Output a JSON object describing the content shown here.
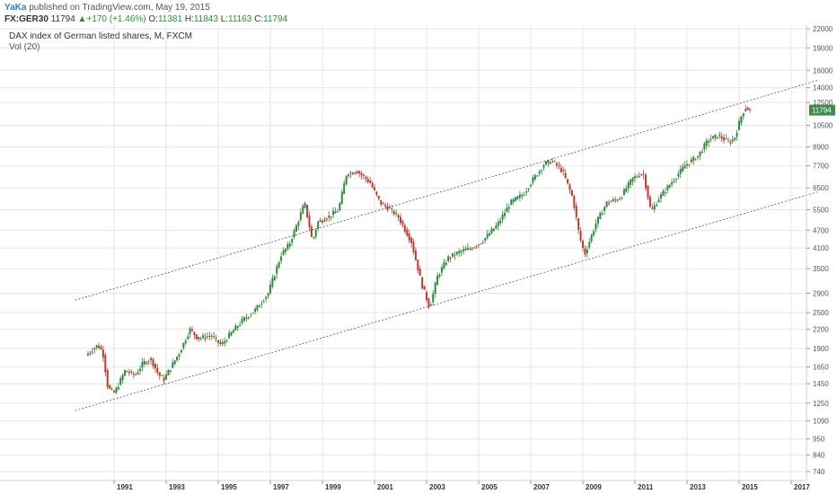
{
  "header": {
    "author": "YaKa",
    "published": "published on TradingView.com, May 19, 2015"
  },
  "quote": {
    "symbol": "FX:GER30",
    "last": "11794",
    "change": "+170 (+1.46%)",
    "open_label": "O:",
    "open": "11381",
    "high_label": "H:",
    "high": "11843",
    "low_label": "L:",
    "low": "11163",
    "close_label": "C:",
    "close": "11794"
  },
  "panel": {
    "title": "DAX index of German listed shares, M, FXCM",
    "vol": "Vol (20)"
  },
  "colors": {
    "up": "#2e8b3a",
    "down": "#c0392b",
    "last_price_bg": "#3d8c4c",
    "channel": "#555555",
    "grid": "#e6e6e6"
  },
  "chart_data": {
    "type": "candlestick",
    "title": "DAX index of German listed shares, M, FXCM",
    "y_scale": "log",
    "y_ticks": [
      740,
      840,
      950,
      1090,
      1250,
      1450,
      1650,
      1900,
      2200,
      2500,
      2900,
      3500,
      4100,
      4700,
      5500,
      6500,
      7700,
      8900,
      10500,
      12500,
      14000,
      16000,
      19000,
      22000
    ],
    "x_ticks": [
      "1991",
      "1993",
      "1995",
      "1997",
      "1999",
      "2001",
      "2003",
      "2005",
      "2007",
      "2009",
      "2011",
      "2013",
      "2015",
      "2017"
    ],
    "last_price": 11794,
    "channel_lines": [
      {
        "from": [
          1989.5,
          2750
        ],
        "to": [
          2018.0,
          14800
        ]
      },
      {
        "from": [
          1989.5,
          1180
        ],
        "to": [
          2018.0,
          6300
        ]
      }
    ],
    "path": [
      [
        1990.0,
        1800
      ],
      [
        1990.45,
        1950
      ],
      [
        1990.65,
        1850
      ],
      [
        1990.85,
        1400
      ],
      [
        1991.1,
        1350
      ],
      [
        1991.5,
        1600
      ],
      [
        1991.9,
        1550
      ],
      [
        1992.2,
        1700
      ],
      [
        1992.5,
        1750
      ],
      [
        1992.8,
        1550
      ],
      [
        1993.0,
        1500
      ],
      [
        1993.6,
        1850
      ],
      [
        1994.0,
        2200
      ],
      [
        1994.3,
        2050
      ],
      [
        1994.8,
        2100
      ],
      [
        1995.2,
        1950
      ],
      [
        1995.6,
        2150
      ],
      [
        1996.0,
        2350
      ],
      [
        1996.5,
        2550
      ],
      [
        1997.0,
        2900
      ],
      [
        1997.5,
        3900
      ],
      [
        1997.8,
        4200
      ],
      [
        1998.1,
        4900
      ],
      [
        1998.4,
        5800
      ],
      [
        1998.7,
        4300
      ],
      [
        1998.9,
        5000
      ],
      [
        1999.3,
        5200
      ],
      [
        1999.7,
        5500
      ],
      [
        2000.0,
        7200
      ],
      [
        2000.4,
        7400
      ],
      [
        2000.9,
        6800
      ],
      [
        2001.3,
        5800
      ],
      [
        2001.7,
        5500
      ],
      [
        2002.0,
        5200
      ],
      [
        2002.5,
        4300
      ],
      [
        2002.9,
        3100
      ],
      [
        2003.2,
        2600
      ],
      [
        2003.5,
        3300
      ],
      [
        2003.9,
        3800
      ],
      [
        2004.4,
        4000
      ],
      [
        2004.8,
        4100
      ],
      [
        2005.2,
        4300
      ],
      [
        2005.8,
        4900
      ],
      [
        2006.3,
        5800
      ],
      [
        2006.8,
        6200
      ],
      [
        2007.2,
        7000
      ],
      [
        2007.6,
        7800
      ],
      [
        2007.9,
        8000
      ],
      [
        2008.3,
        7400
      ],
      [
        2008.7,
        6000
      ],
      [
        2008.95,
        4500
      ],
      [
        2009.15,
        3900
      ],
      [
        2009.6,
        5000
      ],
      [
        2010.0,
        5800
      ],
      [
        2010.5,
        6000
      ],
      [
        2011.0,
        7000
      ],
      [
        2011.4,
        7300
      ],
      [
        2011.7,
        5400
      ],
      [
        2012.0,
        6000
      ],
      [
        2012.5,
        6800
      ],
      [
        2013.0,
        7700
      ],
      [
        2013.5,
        8300
      ],
      [
        2013.9,
        9400
      ],
      [
        2014.3,
        9700
      ],
      [
        2014.7,
        9200
      ],
      [
        2014.9,
        9500
      ],
      [
        2015.2,
        11500
      ],
      [
        2015.35,
        12100
      ],
      [
        2015.45,
        11800
      ]
    ]
  }
}
